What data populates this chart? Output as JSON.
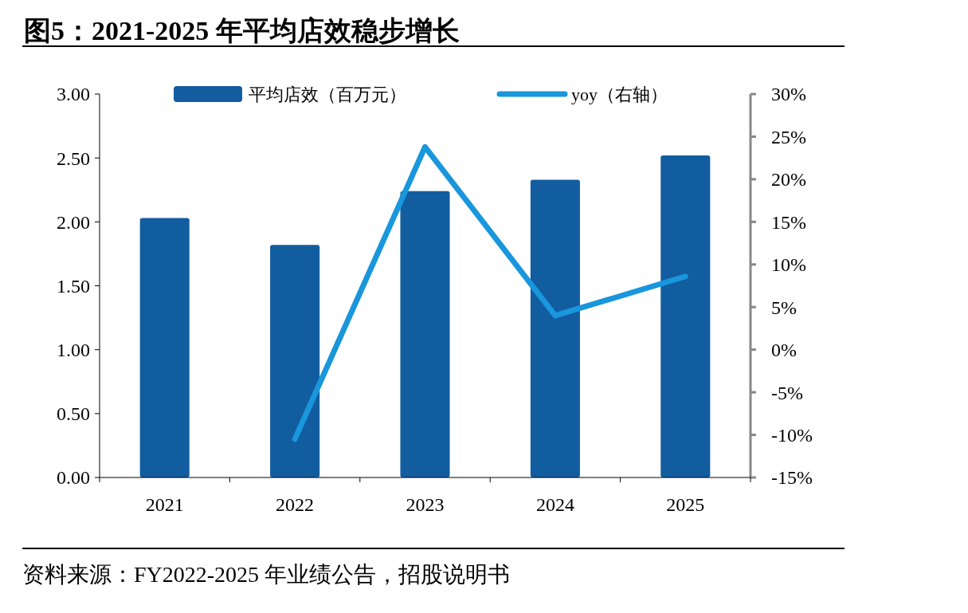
{
  "chart_data": {
    "type": "bar",
    "title": "图5：2021-2025 年平均店效稳步增长",
    "categories": [
      "2021",
      "2022",
      "2023",
      "2024",
      "2025"
    ],
    "series": [
      {
        "name": "平均店效（百万元）",
        "color": "#125da0",
        "values": [
          2.03,
          1.82,
          2.24,
          2.33,
          2.52
        ]
      },
      {
        "name": "yoy（右轴）",
        "type": "line",
        "axis": "y2",
        "color": "#1996dc",
        "values": [
          null,
          -10.5,
          23.8,
          4.0,
          8.6
        ]
      }
    ],
    "ylim": [
      0,
      3
    ],
    "yticks": [
      {
        "value": 0,
        "label": "0.00"
      },
      {
        "value": 0.5,
        "label": "0.50"
      },
      {
        "value": 1,
        "label": "1.00"
      },
      {
        "value": 1.5,
        "label": "1.50"
      },
      {
        "value": 2,
        "label": "2.00"
      },
      {
        "value": 2.5,
        "label": "2.50"
      },
      {
        "value": 3,
        "label": "3.00"
      }
    ],
    "y2lim": [
      -15,
      30
    ],
    "y2ticks": [
      {
        "value": -15,
        "label": "-15%"
      },
      {
        "value": -10,
        "label": "-10%"
      },
      {
        "value": -5,
        "label": "-5%"
      },
      {
        "value": 0,
        "label": "0%"
      },
      {
        "value": 5,
        "label": "5%"
      },
      {
        "value": 10,
        "label": "10%"
      },
      {
        "value": 15,
        "label": "15%"
      },
      {
        "value": 20,
        "label": "20%"
      },
      {
        "value": 25,
        "label": "25%"
      },
      {
        "value": 30,
        "label": "30%"
      }
    ],
    "legend": "top",
    "grid": false,
    "annotations": [
      "资料来源：FY2022-2025 年业绩公告，招股说明书"
    ]
  }
}
